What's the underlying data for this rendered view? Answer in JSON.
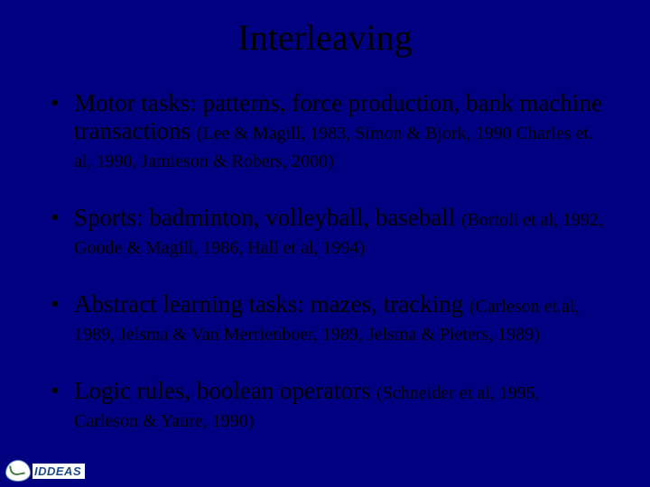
{
  "slide": {
    "title": "Interleaving",
    "background_color": "#000080",
    "text_color": "#000000",
    "title_fontsize": 40,
    "body_fontsize": 27,
    "citation_fontsize": 20,
    "font_family": "Times New Roman",
    "bullets": [
      {
        "main": "Motor tasks: patterns, force production, bank machine transactions ",
        "citation": "(Lee & Magill, 1983, Simon & Bjork, 1990 Charles et. al, 1990, Jamieson & Robers, 2000)"
      },
      {
        "main": "Sports: badminton, volleyball, baseball ",
        "citation": "(Bortoli et al, 1992, Goode & Magill, 1986, Hall et al, 1994)"
      },
      {
        "main": "Abstract learning tasks: mazes, tracking ",
        "citation": "(Carleson et.al, 1989, Jelsma & Van Merrienboer, 1989, Jelsma & Pieters, 1989)"
      },
      {
        "main": "Logic rules, boolean operators ",
        "citation": "(Schneider et al, 1995, Carleson & Yaure, 1990)"
      }
    ]
  },
  "logo": {
    "text": "IDDEAS",
    "text_color": "#1a4a8a"
  }
}
